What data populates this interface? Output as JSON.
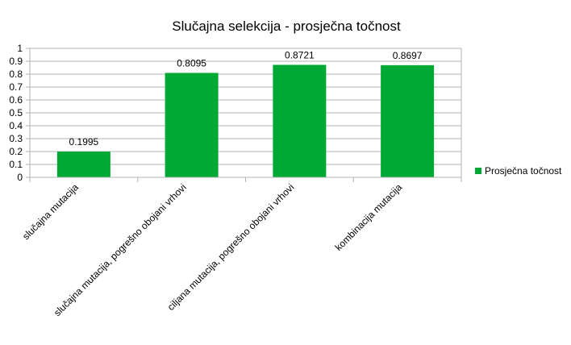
{
  "chart_data": {
    "type": "bar",
    "title": "Slučajna selekcija - prosječna točnost",
    "xlabel": "",
    "ylabel": "",
    "categories": [
      "slučajna mutacija",
      "slučajna mutacija, pogrešno obojani vrhovi",
      "ciljana mutacija, pogrešno obojani vrhovi",
      "kombinacija mutacija"
    ],
    "series": [
      {
        "name": "Prosječna točnost",
        "values": [
          0.1995,
          0.8095,
          0.8721,
          0.8697
        ],
        "color": "#00a933"
      }
    ],
    "data_labels": [
      "0.1995",
      "0.8095",
      "0.8721",
      "0.8697"
    ],
    "ylim": [
      0,
      1
    ],
    "yticks": [
      "0",
      "0.1",
      "0.2",
      "0.3",
      "0.4",
      "0.5",
      "0.6",
      "0.7",
      "0.8",
      "0.9",
      "1"
    ],
    "grid": true,
    "legend_position": "right"
  }
}
